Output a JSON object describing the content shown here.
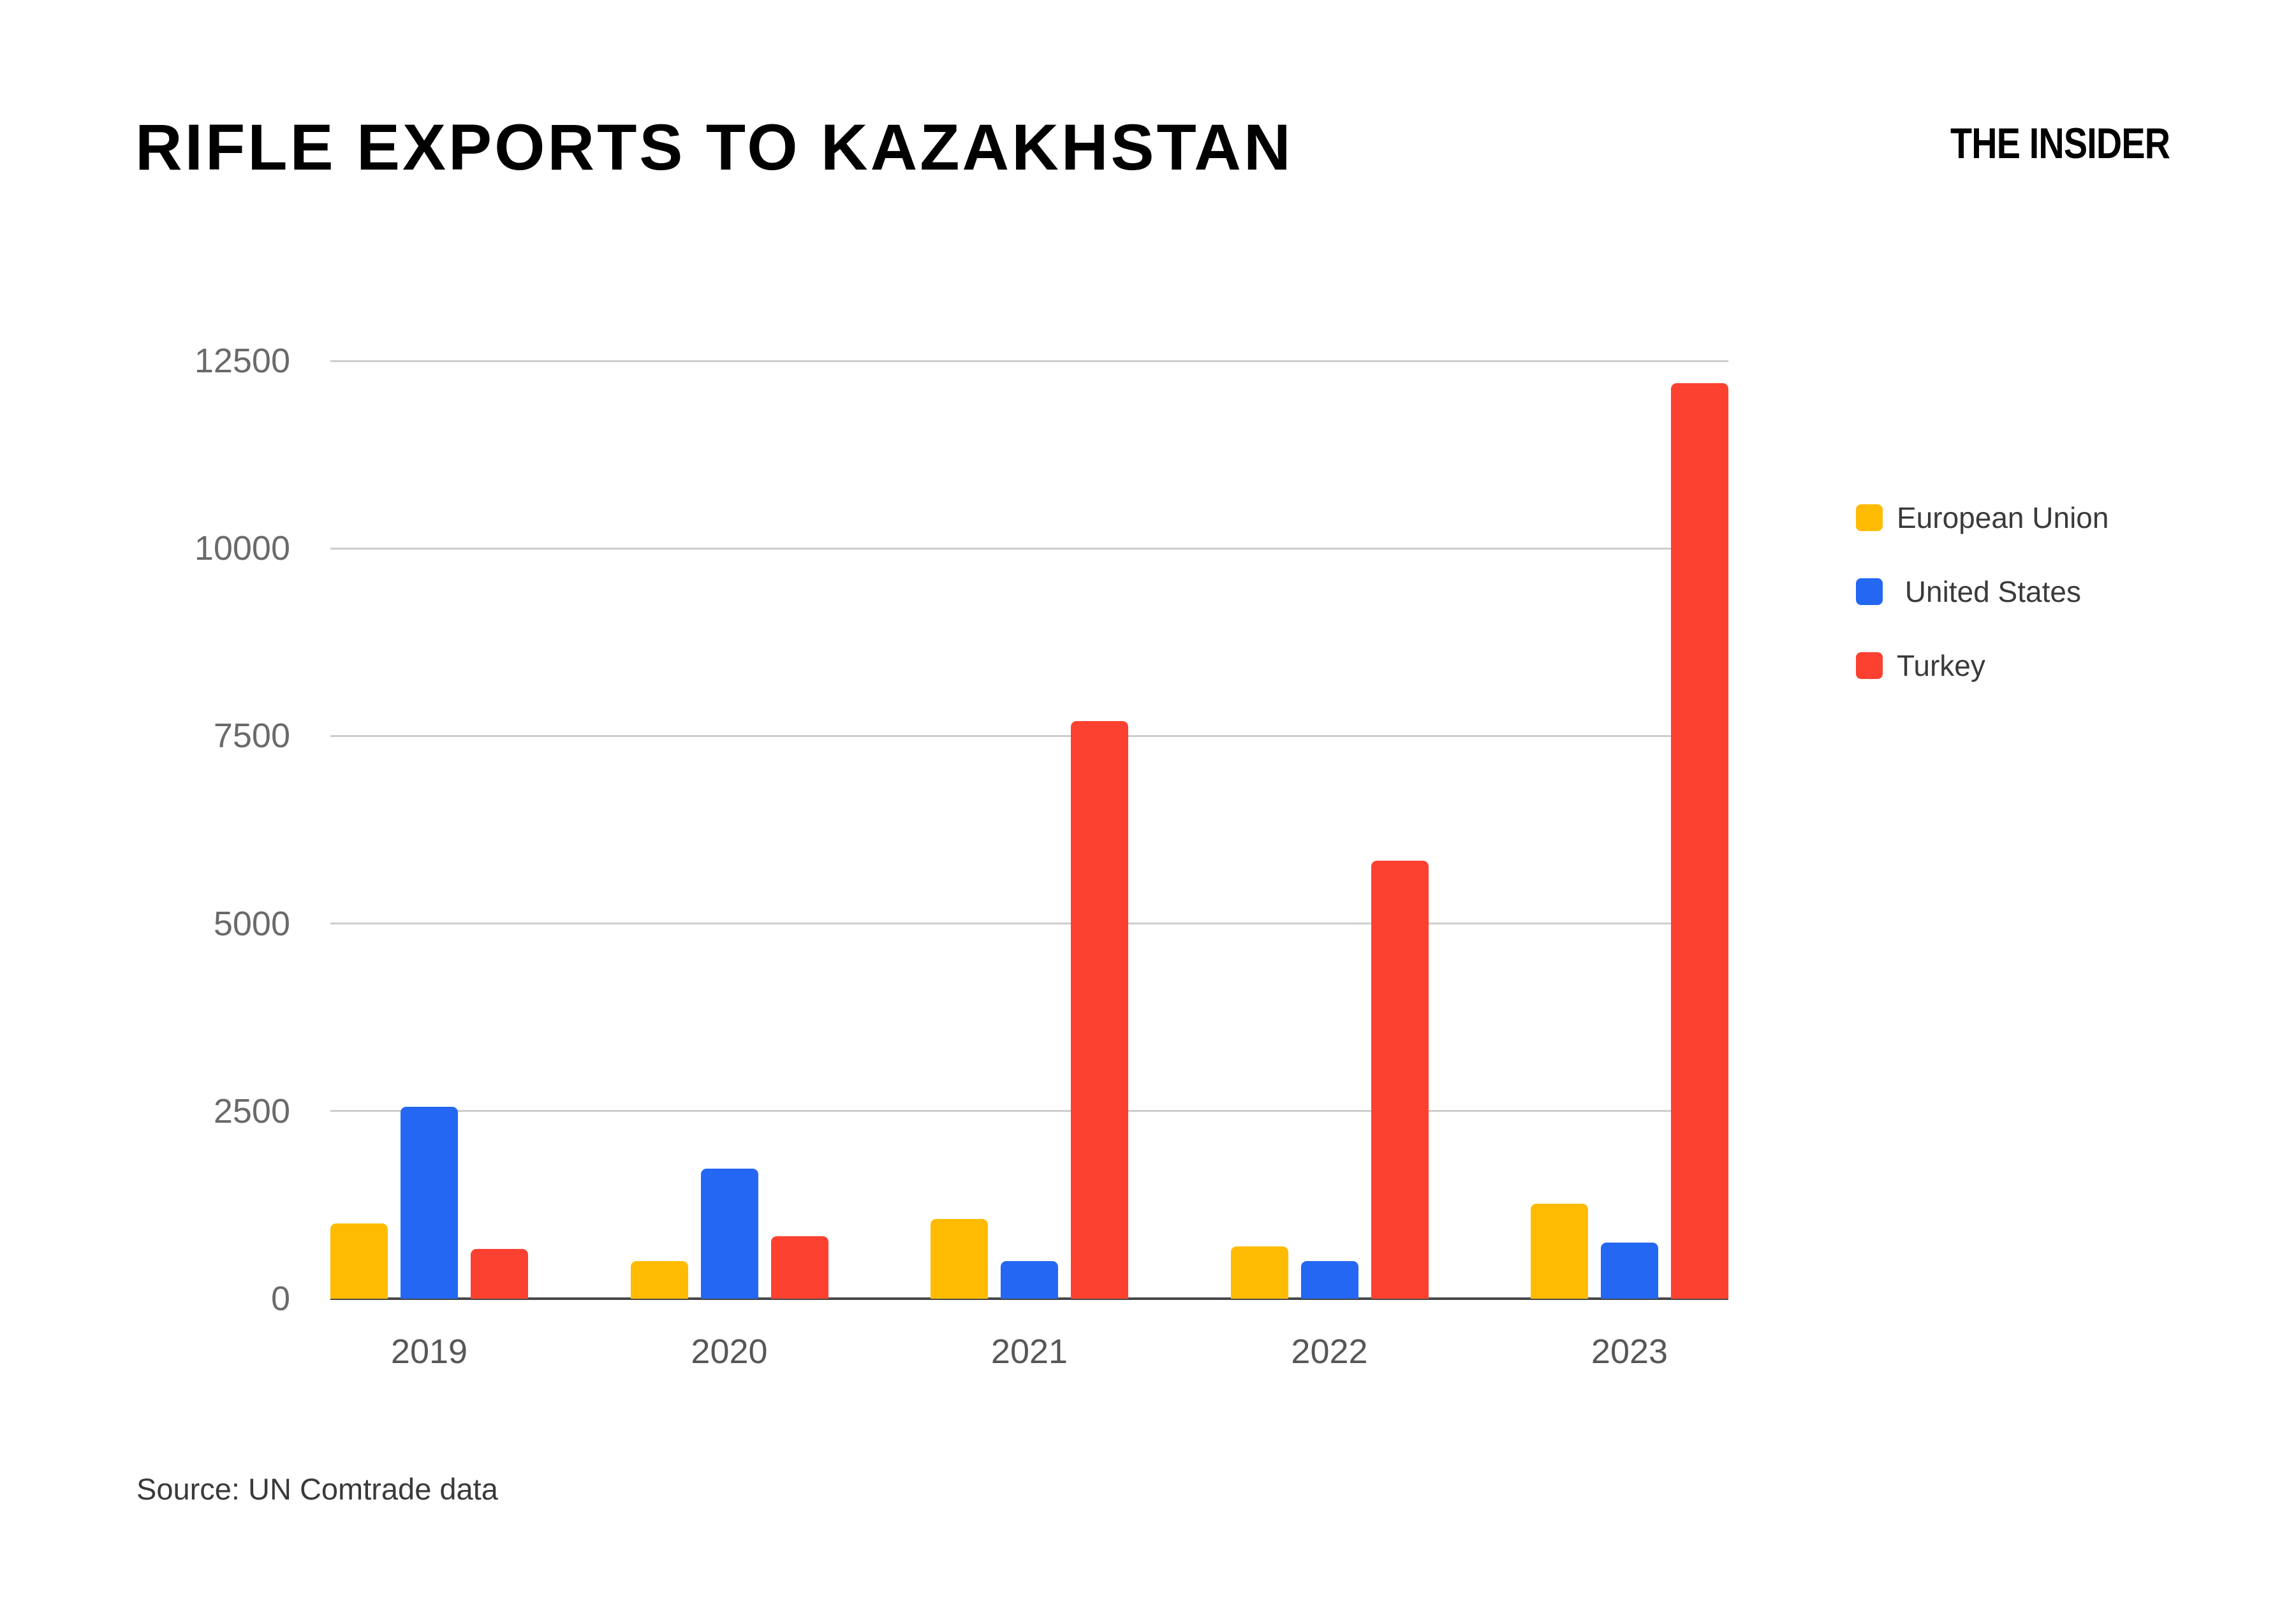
{
  "header": {
    "title": "RIFLE EXPORTS TO KAZAKHSTAN",
    "brand": "THE INSIDER"
  },
  "footer": {
    "source": "Source: UN Comtrade data"
  },
  "colors": {
    "background": "#FFFFFF",
    "grid": "#CDCDCD",
    "axis_baseline": "#474747",
    "y_tick_label": "#6A6A6A",
    "x_tick_label": "#575757",
    "legend_text": "#3A3A3A",
    "title_text": "#000000",
    "series_yellow": "#FFBB01",
    "series_blue": "#2467F2",
    "series_red": "#FC4130"
  },
  "chart_data": {
    "type": "bar",
    "title": "RIFLE EXPORTS TO KAZAKHSTAN",
    "categories": [
      "2019",
      "2020",
      "2021",
      "2022",
      "2023"
    ],
    "series": [
      {
        "name": "European Union",
        "color": "#FFBB01",
        "values": [
          1000,
          500,
          1060,
          700,
          1270
        ]
      },
      {
        "name": " United States",
        "color": "#2467F2",
        "values": [
          2560,
          1730,
          500,
          500,
          750
        ]
      },
      {
        "name": "Turkey",
        "color": "#FC4130",
        "values": [
          660,
          830,
          7700,
          5840,
          12200
        ]
      }
    ],
    "xlabel": "",
    "ylabel": "",
    "ylim": [
      0,
      12500
    ],
    "yticks": [
      0,
      2500,
      5000,
      7500,
      10000,
      12500
    ],
    "grid": true,
    "legend_position": "right"
  }
}
